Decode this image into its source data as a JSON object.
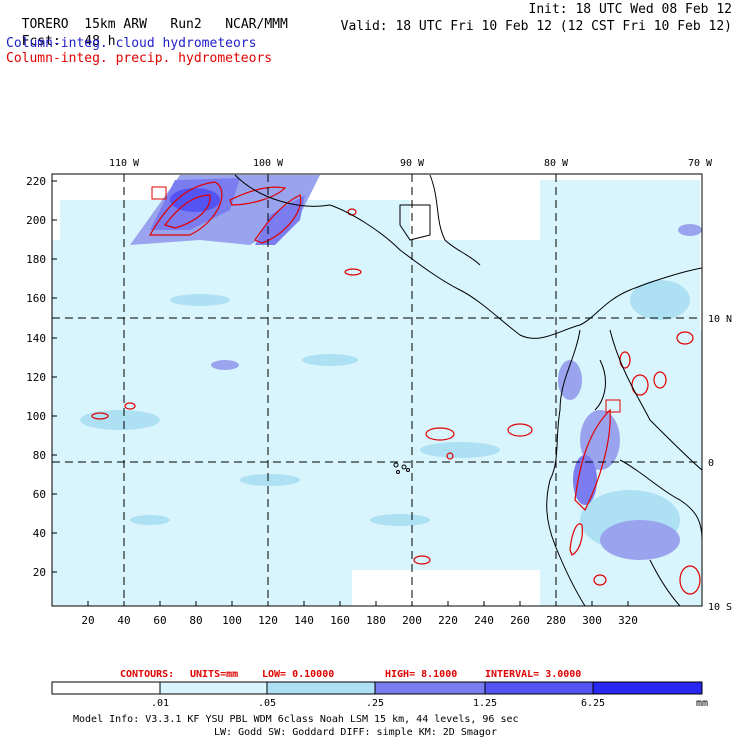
{
  "header": {
    "model": "TORERO",
    "resolution": "15km ARW",
    "run": "Run2",
    "org": "NCAR/MMM",
    "init": "Init: 18 UTC Wed 08 Feb 12",
    "fcst_label": "Fcst:",
    "fcst_value": "48 h",
    "valid": "Valid: 18 UTC Fri 10 Feb 12 (12 CST Fri 10 Feb 12)",
    "field1": "Column-integ. cloud hydrometeors",
    "field2": "Column-integ. precip. hydrometeors"
  },
  "map": {
    "lon_labels": [
      "110 W",
      "100 W",
      "90 W",
      "80 W",
      "70 W"
    ],
    "lat_labels": [
      "10 N",
      "0",
      "10 S"
    ],
    "y_ticks": [
      "220",
      "200",
      "180",
      "160",
      "140",
      "120",
      "100",
      "80",
      "60",
      "40",
      "20"
    ],
    "x_ticks": [
      "20",
      "40",
      "60",
      "80",
      "100",
      "120",
      "140",
      "160",
      "180",
      "200",
      "220",
      "240",
      "260",
      "280",
      "300",
      "320"
    ]
  },
  "contours": {
    "prefix": "CONTOURS:",
    "units": "UNITS=mm",
    "low": "LOW= 0.10000",
    "high": "HIGH= 8.1000",
    "interval": "INTERVAL= 3.0000"
  },
  "colorbar": {
    "labels": [
      ".01",
      ".05",
      ".25",
      "1.25",
      "6.25"
    ],
    "units": "mm",
    "colors": [
      "#ffffff",
      "#d8f4fc",
      "#aee0f4",
      "#9aa4ee",
      "#7a7cf0",
      "#5454f4",
      "#2828f4"
    ]
  },
  "footer": {
    "line1": "Model Info: V3.3.1   KF     YSU PBL  WDM 6class  Noah LSM  15 km,   44 levels,   96 sec",
    "line2": "LW: Godd SW: Goddard DIFF: simple KM: 2D Smagor"
  }
}
